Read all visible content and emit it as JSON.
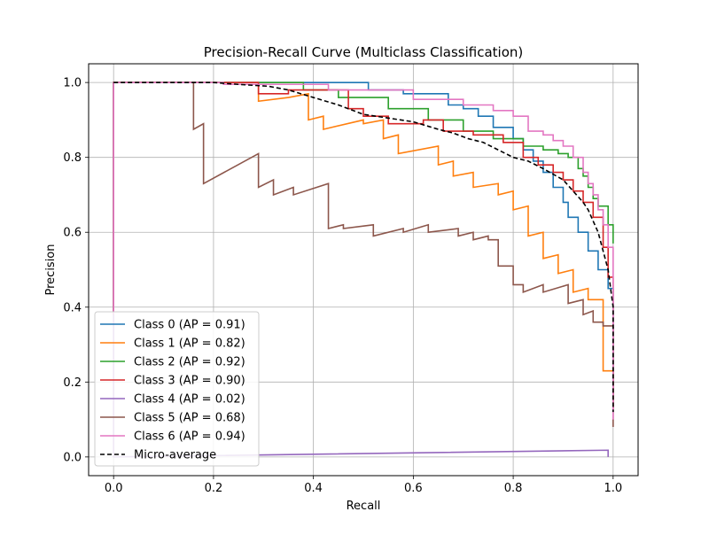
{
  "chart_data": {
    "type": "line",
    "title": "Precision-Recall Curve (Multiclass Classification)",
    "xlabel": "Recall",
    "ylabel": "Precision",
    "xlim": [
      -0.05,
      1.05
    ],
    "ylim": [
      -0.05,
      1.05
    ],
    "grid": true,
    "legend_position": "lower-left",
    "xticks": [
      "0.0",
      "0.2",
      "0.4",
      "0.6",
      "0.8",
      "1.0"
    ],
    "yticks": [
      "0.0",
      "0.2",
      "0.4",
      "0.6",
      "0.8",
      "1.0"
    ],
    "series": [
      {
        "name": "Class 0 (AP = 0.91)",
        "color": "#1f77b4",
        "dash": "",
        "points": [
          [
            0,
            0.38
          ],
          [
            0,
            1.0
          ],
          [
            0.51,
            1.0
          ],
          [
            0.51,
            0.98
          ],
          [
            0.58,
            0.98
          ],
          [
            0.58,
            0.97
          ],
          [
            0.67,
            0.97
          ],
          [
            0.67,
            0.94
          ],
          [
            0.7,
            0.94
          ],
          [
            0.7,
            0.93
          ],
          [
            0.73,
            0.93
          ],
          [
            0.73,
            0.91
          ],
          [
            0.76,
            0.91
          ],
          [
            0.76,
            0.88
          ],
          [
            0.8,
            0.88
          ],
          [
            0.8,
            0.85
          ],
          [
            0.82,
            0.85
          ],
          [
            0.82,
            0.82
          ],
          [
            0.84,
            0.82
          ],
          [
            0.84,
            0.79
          ],
          [
            0.86,
            0.79
          ],
          [
            0.86,
            0.76
          ],
          [
            0.88,
            0.76
          ],
          [
            0.88,
            0.72
          ],
          [
            0.9,
            0.72
          ],
          [
            0.9,
            0.68
          ],
          [
            0.91,
            0.68
          ],
          [
            0.91,
            0.64
          ],
          [
            0.93,
            0.64
          ],
          [
            0.93,
            0.6
          ],
          [
            0.95,
            0.6
          ],
          [
            0.95,
            0.55
          ],
          [
            0.97,
            0.55
          ],
          [
            0.97,
            0.5
          ],
          [
            0.99,
            0.5
          ],
          [
            0.99,
            0.45
          ],
          [
            1.0,
            0.45
          ],
          [
            1.0,
            0.13
          ]
        ]
      },
      {
        "name": "Class 1 (AP = 0.82)",
        "color": "#ff7f0e",
        "dash": "",
        "points": [
          [
            0,
            0.38
          ],
          [
            0,
            1.0
          ],
          [
            0.29,
            1.0
          ],
          [
            0.29,
            0.95
          ],
          [
            0.35,
            0.96
          ],
          [
            0.39,
            0.97
          ],
          [
            0.39,
            0.9
          ],
          [
            0.42,
            0.91
          ],
          [
            0.42,
            0.875
          ],
          [
            0.5,
            0.9
          ],
          [
            0.5,
            0.89
          ],
          [
            0.54,
            0.9
          ],
          [
            0.54,
            0.85
          ],
          [
            0.57,
            0.86
          ],
          [
            0.57,
            0.81
          ],
          [
            0.65,
            0.83
          ],
          [
            0.65,
            0.78
          ],
          [
            0.68,
            0.79
          ],
          [
            0.68,
            0.75
          ],
          [
            0.72,
            0.76
          ],
          [
            0.72,
            0.72
          ],
          [
            0.77,
            0.73
          ],
          [
            0.77,
            0.7
          ],
          [
            0.8,
            0.71
          ],
          [
            0.8,
            0.66
          ],
          [
            0.83,
            0.67
          ],
          [
            0.83,
            0.59
          ],
          [
            0.86,
            0.6
          ],
          [
            0.86,
            0.53
          ],
          [
            0.89,
            0.54
          ],
          [
            0.89,
            0.49
          ],
          [
            0.92,
            0.5
          ],
          [
            0.92,
            0.44
          ],
          [
            0.95,
            0.45
          ],
          [
            0.95,
            0.42
          ],
          [
            0.98,
            0.42
          ],
          [
            0.98,
            0.23
          ],
          [
            1.0,
            0.23
          ],
          [
            1.0,
            0.13
          ]
        ]
      },
      {
        "name": "Class 2 (AP = 0.92)",
        "color": "#2ca02c",
        "dash": "",
        "points": [
          [
            0,
            0.38
          ],
          [
            0,
            1.0
          ],
          [
            0.38,
            1.0
          ],
          [
            0.38,
            0.98
          ],
          [
            0.45,
            0.98
          ],
          [
            0.45,
            0.96
          ],
          [
            0.55,
            0.96
          ],
          [
            0.55,
            0.93
          ],
          [
            0.63,
            0.93
          ],
          [
            0.63,
            0.9
          ],
          [
            0.7,
            0.9
          ],
          [
            0.7,
            0.87
          ],
          [
            0.76,
            0.87
          ],
          [
            0.76,
            0.85
          ],
          [
            0.82,
            0.85
          ],
          [
            0.82,
            0.83
          ],
          [
            0.86,
            0.83
          ],
          [
            0.86,
            0.82
          ],
          [
            0.89,
            0.82
          ],
          [
            0.89,
            0.81
          ],
          [
            0.91,
            0.81
          ],
          [
            0.91,
            0.8
          ],
          [
            0.93,
            0.8
          ],
          [
            0.93,
            0.77
          ],
          [
            0.94,
            0.77
          ],
          [
            0.94,
            0.75
          ],
          [
            0.95,
            0.75
          ],
          [
            0.95,
            0.72
          ],
          [
            0.96,
            0.72
          ],
          [
            0.96,
            0.69
          ],
          [
            0.97,
            0.69
          ],
          [
            0.97,
            0.67
          ],
          [
            0.99,
            0.67
          ],
          [
            0.99,
            0.62
          ],
          [
            1.0,
            0.62
          ],
          [
            1.0,
            0.57
          ]
        ]
      },
      {
        "name": "Class 3 (AP = 0.90)",
        "color": "#d62728",
        "dash": "",
        "points": [
          [
            0,
            0.38
          ],
          [
            0,
            1.0
          ],
          [
            0.29,
            1.0
          ],
          [
            0.29,
            0.97
          ],
          [
            0.35,
            0.97
          ],
          [
            0.35,
            0.98
          ],
          [
            0.47,
            0.98
          ],
          [
            0.47,
            0.93
          ],
          [
            0.5,
            0.93
          ],
          [
            0.5,
            0.91
          ],
          [
            0.55,
            0.91
          ],
          [
            0.55,
            0.89
          ],
          [
            0.62,
            0.89
          ],
          [
            0.62,
            0.9
          ],
          [
            0.66,
            0.9
          ],
          [
            0.66,
            0.87
          ],
          [
            0.72,
            0.87
          ],
          [
            0.72,
            0.86
          ],
          [
            0.78,
            0.86
          ],
          [
            0.78,
            0.84
          ],
          [
            0.82,
            0.84
          ],
          [
            0.82,
            0.8
          ],
          [
            0.85,
            0.8
          ],
          [
            0.85,
            0.78
          ],
          [
            0.88,
            0.78
          ],
          [
            0.88,
            0.76
          ],
          [
            0.9,
            0.76
          ],
          [
            0.9,
            0.74
          ],
          [
            0.92,
            0.74
          ],
          [
            0.92,
            0.71
          ],
          [
            0.94,
            0.71
          ],
          [
            0.94,
            0.68
          ],
          [
            0.96,
            0.68
          ],
          [
            0.96,
            0.64
          ],
          [
            0.98,
            0.64
          ],
          [
            0.98,
            0.56
          ],
          [
            0.99,
            0.56
          ],
          [
            0.99,
            0.48
          ],
          [
            1.0,
            0.48
          ],
          [
            1.0,
            0.13
          ]
        ]
      },
      {
        "name": "Class 4 (AP = 0.02)",
        "color": "#9467bd",
        "dash": "",
        "points": [
          [
            0,
            0.38
          ],
          [
            0,
            1.0
          ],
          [
            0,
            0.0
          ],
          [
            0.99,
            0.018
          ],
          [
            0.99,
            0.0
          ]
        ]
      },
      {
        "name": "Class 5 (AP = 0.68)",
        "color": "#8c564b",
        "dash": "",
        "points": [
          [
            0,
            0.38
          ],
          [
            0,
            1.0
          ],
          [
            0.16,
            1.0
          ],
          [
            0.16,
            0.875
          ],
          [
            0.18,
            0.89
          ],
          [
            0.18,
            0.73
          ],
          [
            0.29,
            0.81
          ],
          [
            0.29,
            0.72
          ],
          [
            0.32,
            0.74
          ],
          [
            0.32,
            0.7
          ],
          [
            0.36,
            0.72
          ],
          [
            0.36,
            0.7
          ],
          [
            0.43,
            0.73
          ],
          [
            0.43,
            0.61
          ],
          [
            0.46,
            0.62
          ],
          [
            0.46,
            0.61
          ],
          [
            0.52,
            0.62
          ],
          [
            0.52,
            0.59
          ],
          [
            0.58,
            0.61
          ],
          [
            0.58,
            0.6
          ],
          [
            0.63,
            0.62
          ],
          [
            0.63,
            0.6
          ],
          [
            0.69,
            0.61
          ],
          [
            0.69,
            0.59
          ],
          [
            0.72,
            0.6
          ],
          [
            0.72,
            0.58
          ],
          [
            0.75,
            0.59
          ],
          [
            0.75,
            0.58
          ],
          [
            0.77,
            0.58
          ],
          [
            0.77,
            0.51
          ],
          [
            0.8,
            0.51
          ],
          [
            0.8,
            0.46
          ],
          [
            0.82,
            0.46
          ],
          [
            0.82,
            0.44
          ],
          [
            0.86,
            0.46
          ],
          [
            0.86,
            0.44
          ],
          [
            0.91,
            0.46
          ],
          [
            0.91,
            0.41
          ],
          [
            0.94,
            0.42
          ],
          [
            0.94,
            0.38
          ],
          [
            0.96,
            0.39
          ],
          [
            0.96,
            0.36
          ],
          [
            0.98,
            0.36
          ],
          [
            0.98,
            0.35
          ],
          [
            1.0,
            0.35
          ],
          [
            1.0,
            0.08
          ]
        ]
      },
      {
        "name": "Class 6 (AP = 0.94)",
        "color": "#e377c2",
        "dash": "",
        "points": [
          [
            0,
            0.38
          ],
          [
            0,
            1.0
          ],
          [
            0.22,
            1.0
          ],
          [
            0.22,
            0.995
          ],
          [
            0.43,
            0.995
          ],
          [
            0.43,
            0.98
          ],
          [
            0.6,
            0.98
          ],
          [
            0.6,
            0.955
          ],
          [
            0.7,
            0.955
          ],
          [
            0.7,
            0.94
          ],
          [
            0.76,
            0.94
          ],
          [
            0.76,
            0.925
          ],
          [
            0.8,
            0.925
          ],
          [
            0.8,
            0.91
          ],
          [
            0.83,
            0.91
          ],
          [
            0.83,
            0.87
          ],
          [
            0.86,
            0.87
          ],
          [
            0.86,
            0.86
          ],
          [
            0.88,
            0.86
          ],
          [
            0.88,
            0.845
          ],
          [
            0.9,
            0.845
          ],
          [
            0.9,
            0.83
          ],
          [
            0.92,
            0.83
          ],
          [
            0.92,
            0.8
          ],
          [
            0.94,
            0.8
          ],
          [
            0.94,
            0.76
          ],
          [
            0.95,
            0.76
          ],
          [
            0.95,
            0.73
          ],
          [
            0.96,
            0.73
          ],
          [
            0.96,
            0.7
          ],
          [
            0.97,
            0.7
          ],
          [
            0.97,
            0.66
          ],
          [
            0.98,
            0.66
          ],
          [
            0.98,
            0.62
          ],
          [
            0.99,
            0.62
          ],
          [
            0.99,
            0.56
          ],
          [
            1.0,
            0.56
          ],
          [
            1.0,
            0.1
          ]
        ]
      },
      {
        "name": "Micro-average",
        "color": "#000000",
        "dash": "5,3",
        "points": [
          [
            0,
            1.0
          ],
          [
            0.2,
            1.0
          ],
          [
            0.25,
            0.995
          ],
          [
            0.31,
            0.99
          ],
          [
            0.35,
            0.98
          ],
          [
            0.4,
            0.96
          ],
          [
            0.45,
            0.94
          ],
          [
            0.5,
            0.915
          ],
          [
            0.55,
            0.905
          ],
          [
            0.6,
            0.895
          ],
          [
            0.65,
            0.875
          ],
          [
            0.68,
            0.865
          ],
          [
            0.71,
            0.85
          ],
          [
            0.74,
            0.84
          ],
          [
            0.77,
            0.82
          ],
          [
            0.8,
            0.8
          ],
          [
            0.83,
            0.79
          ],
          [
            0.86,
            0.77
          ],
          [
            0.88,
            0.755
          ],
          [
            0.9,
            0.74
          ],
          [
            0.92,
            0.71
          ],
          [
            0.94,
            0.68
          ],
          [
            0.95,
            0.66
          ],
          [
            0.96,
            0.63
          ],
          [
            0.97,
            0.6
          ],
          [
            0.98,
            0.55
          ],
          [
            0.99,
            0.5
          ],
          [
            1.0,
            0.4
          ],
          [
            1.0,
            0.12
          ]
        ]
      }
    ]
  }
}
